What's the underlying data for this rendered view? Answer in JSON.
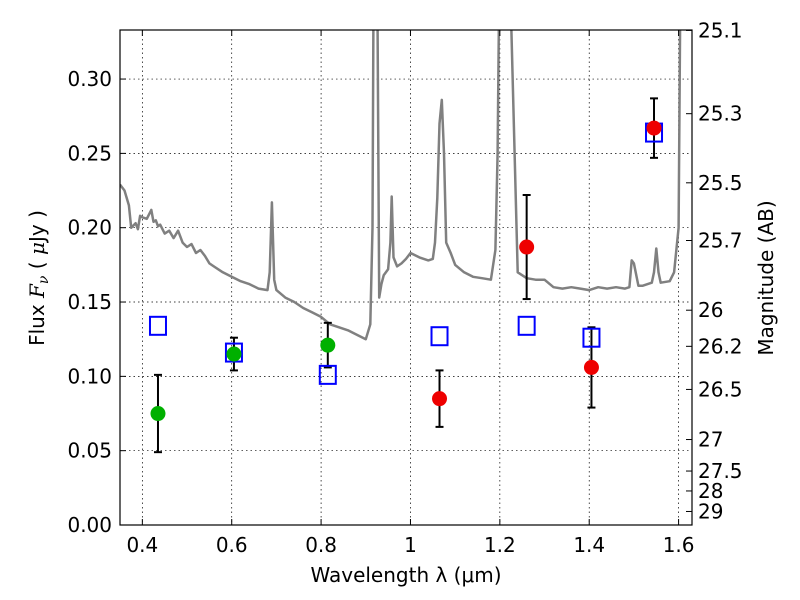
{
  "chart_data": {
    "type": "scatter",
    "xlabel": "Wavelength  λ (μm)",
    "ylabel": "Flux  F_ν  ( μJy )",
    "y2label": "Magnitude (AB)",
    "xlim": [
      0.35,
      1.63
    ],
    "ylim": [
      0.0,
      0.333
    ],
    "grid": true,
    "x_ticks": [
      0.4,
      0.6,
      0.8,
      1.0,
      1.2,
      1.4,
      1.6
    ],
    "x_tick_labels": [
      "0.4",
      "0.6",
      "0.8",
      "1",
      "1.2",
      "1.4",
      "1.6"
    ],
    "y_ticks": [
      0.0,
      0.05,
      0.1,
      0.15,
      0.2,
      0.25,
      0.3
    ],
    "y_tick_labels": [
      "0.00",
      "0.05",
      "0.10",
      "0.15",
      "0.20",
      "0.25",
      "0.30"
    ],
    "y2_ticks": [
      {
        "label": "25.1",
        "flux": 0.3327
      },
      {
        "label": "25.3",
        "flux": 0.2767
      },
      {
        "label": "25.5",
        "flux": 0.2302
      },
      {
        "label": "25.7",
        "flux": 0.1914
      },
      {
        "label": "26",
        "flux": 0.1445
      },
      {
        "label": "26.2",
        "flux": 0.1202
      },
      {
        "label": "26.5",
        "flux": 0.0912
      },
      {
        "label": "27",
        "flux": 0.0575
      },
      {
        "label": "27.5",
        "flux": 0.0363
      },
      {
        "label": "28",
        "flux": 0.0229
      },
      {
        "label": "29",
        "flux": 0.0091
      }
    ],
    "series": [
      {
        "marker": "square-open",
        "color": "#0000ff",
        "x": [
          0.435,
          0.605,
          0.815,
          1.065,
          1.26,
          1.405,
          1.545
        ],
        "y": [
          0.134,
          0.116,
          0.101,
          0.127,
          0.134,
          0.126,
          0.264
        ]
      },
      {
        "marker": "circle",
        "color": "#00b000",
        "x": [
          0.435,
          0.605,
          0.815
        ],
        "y": [
          0.075,
          0.115,
          0.121
        ],
        "err": [
          0.026,
          0.011,
          0.015
        ]
      },
      {
        "marker": "circle",
        "color": "#ee0000",
        "x": [
          1.065,
          1.26,
          1.405,
          1.545
        ],
        "y": [
          0.085,
          0.187,
          0.106,
          0.267
        ],
        "err": [
          0.019,
          0.035,
          0.027,
          0.02
        ]
      }
    ],
    "spectrum": {
      "color": "#808080",
      "x": [
        0.35,
        0.36,
        0.37,
        0.375,
        0.385,
        0.39,
        0.395,
        0.4,
        0.41,
        0.42,
        0.425,
        0.43,
        0.435,
        0.44,
        0.45,
        0.46,
        0.47,
        0.48,
        0.49,
        0.5,
        0.51,
        0.52,
        0.53,
        0.54,
        0.55,
        0.56,
        0.58,
        0.6,
        0.62,
        0.64,
        0.66,
        0.68,
        0.685,
        0.69,
        0.695,
        0.7,
        0.72,
        0.74,
        0.76,
        0.78,
        0.8,
        0.82,
        0.84,
        0.86,
        0.88,
        0.9,
        0.91,
        0.915,
        0.918,
        0.92,
        0.925,
        0.93,
        0.935,
        0.94,
        0.945,
        0.95,
        0.955,
        0.958,
        0.962,
        0.97,
        0.98,
        0.99,
        1.0,
        1.02,
        1.04,
        1.05,
        1.055,
        1.06,
        1.065,
        1.07,
        1.075,
        1.08,
        1.09,
        1.1,
        1.12,
        1.14,
        1.16,
        1.18,
        1.19,
        1.195,
        1.2,
        1.205,
        1.21,
        1.215,
        1.22,
        1.24,
        1.26,
        1.28,
        1.3,
        1.32,
        1.34,
        1.36,
        1.38,
        1.4,
        1.42,
        1.44,
        1.46,
        1.48,
        1.49,
        1.495,
        1.5,
        1.51,
        1.52,
        1.53,
        1.54,
        1.545,
        1.55,
        1.555,
        1.56,
        1.58,
        1.59,
        1.6,
        1.605,
        1.61,
        1.62,
        1.63
      ],
      "y": [
        0.229,
        0.225,
        0.215,
        0.2,
        0.203,
        0.199,
        0.208,
        0.207,
        0.206,
        0.212,
        0.204,
        0.205,
        0.201,
        0.202,
        0.196,
        0.198,
        0.193,
        0.198,
        0.19,
        0.187,
        0.189,
        0.183,
        0.185,
        0.181,
        0.176,
        0.174,
        0.17,
        0.167,
        0.164,
        0.162,
        0.159,
        0.158,
        0.17,
        0.217,
        0.165,
        0.158,
        0.153,
        0.15,
        0.146,
        0.143,
        0.14,
        0.135,
        0.133,
        0.131,
        0.128,
        0.125,
        0.135,
        0.2,
        0.4,
        0.4,
        0.4,
        0.153,
        0.162,
        0.168,
        0.17,
        0.172,
        0.19,
        0.221,
        0.18,
        0.174,
        0.176,
        0.179,
        0.183,
        0.18,
        0.178,
        0.179,
        0.19,
        0.22,
        0.27,
        0.286,
        0.25,
        0.19,
        0.183,
        0.175,
        0.17,
        0.167,
        0.166,
        0.165,
        0.185,
        0.25,
        0.4,
        0.4,
        0.4,
        0.4,
        0.4,
        0.17,
        0.166,
        0.165,
        0.165,
        0.16,
        0.159,
        0.16,
        0.159,
        0.158,
        0.16,
        0.159,
        0.16,
        0.159,
        0.16,
        0.178,
        0.176,
        0.161,
        0.161,
        0.162,
        0.163,
        0.17,
        0.186,
        0.17,
        0.163,
        0.164,
        0.17,
        0.2,
        0.4,
        0.4,
        0.4,
        0.4
      ]
    }
  }
}
